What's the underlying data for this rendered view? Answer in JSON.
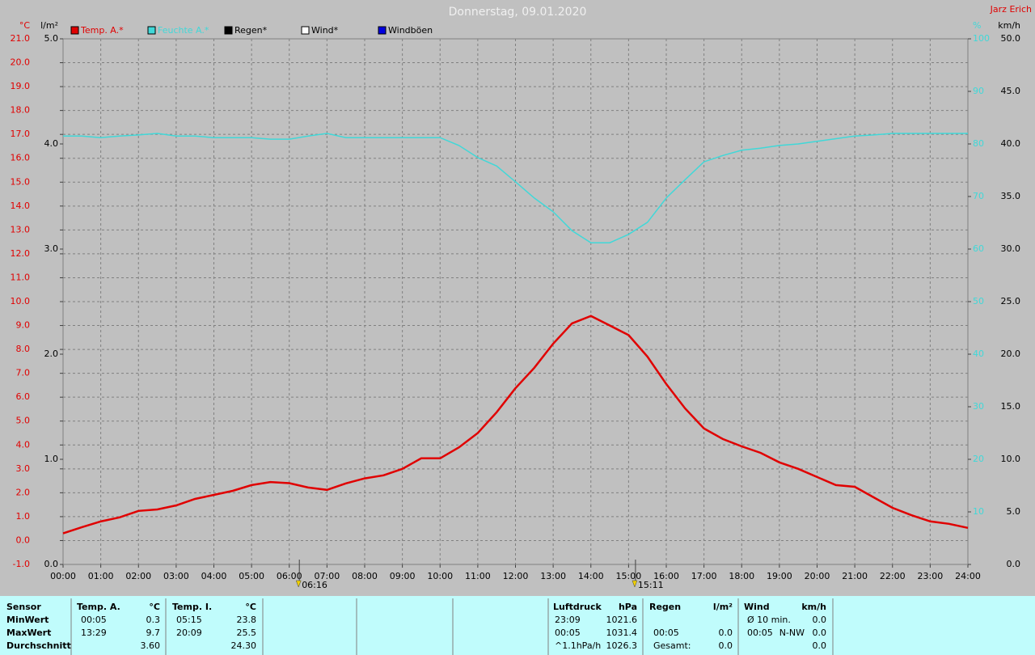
{
  "header": {
    "title": "Donnerstag, 09.01.2020",
    "author": "Jarz Erich"
  },
  "chart_data": {
    "type": "line",
    "x": [
      0,
      0.5,
      1,
      1.5,
      2,
      2.5,
      3,
      3.5,
      4,
      4.5,
      5,
      5.5,
      6,
      6.5,
      7,
      7.5,
      8,
      8.5,
      9,
      9.5,
      10,
      10.5,
      11,
      11.5,
      12,
      12.5,
      13,
      13.5,
      14,
      14.5,
      15,
      15.5,
      16,
      16.5,
      17,
      17.5,
      18,
      18.5,
      19,
      19.5,
      20,
      20.5,
      21,
      21.5,
      22,
      22.5,
      23,
      23.5,
      24
    ],
    "xlim": [
      0,
      24
    ],
    "xticks": [
      {
        "value": 0,
        "label": "00:00"
      },
      {
        "value": 1,
        "label": "01:00"
      },
      {
        "value": 2,
        "label": "02:00"
      },
      {
        "value": 3,
        "label": "03:00"
      },
      {
        "value": 4,
        "label": "04:00"
      },
      {
        "value": 5,
        "label": "05:00"
      },
      {
        "value": 6,
        "label": "06:00"
      },
      {
        "value": 7,
        "label": "07:00"
      },
      {
        "value": 8,
        "label": "08:00"
      },
      {
        "value": 9,
        "label": "09:00"
      },
      {
        "value": 10,
        "label": "10:00"
      },
      {
        "value": 11,
        "label": "11:00"
      },
      {
        "value": 12,
        "label": "12:00"
      },
      {
        "value": 13,
        "label": "13:00"
      },
      {
        "value": 14,
        "label": "14:00"
      },
      {
        "value": 15,
        "label": "15:00"
      },
      {
        "value": 16,
        "label": "16:00"
      },
      {
        "value": 17,
        "label": "17:00"
      },
      {
        "value": 18,
        "label": "18:00"
      },
      {
        "value": 19,
        "label": "19:00"
      },
      {
        "value": 20,
        "label": "20:00"
      },
      {
        "value": 21,
        "label": "21:00"
      },
      {
        "value": 22,
        "label": "22:00"
      },
      {
        "value": 23,
        "label": "23:00"
      },
      {
        "value": 24,
        "label": "24:00"
      }
    ],
    "axes": [
      {
        "unit": "°C",
        "color": "#e00000",
        "lim": [
          -1,
          21
        ],
        "ticks": [
          {
            "value": -1,
            "label": "-1.0"
          },
          {
            "value": 0,
            "label": "0.0"
          },
          {
            "value": 1,
            "label": "1.0"
          },
          {
            "value": 2,
            "label": "2.0"
          },
          {
            "value": 3,
            "label": "3.0"
          },
          {
            "value": 4,
            "label": "4.0"
          },
          {
            "value": 5,
            "label": "5.0"
          },
          {
            "value": 6,
            "label": "6.0"
          },
          {
            "value": 7,
            "label": "7.0"
          },
          {
            "value": 8,
            "label": "8.0"
          },
          {
            "value": 9,
            "label": "9.0"
          },
          {
            "value": 10,
            "label": "10.0"
          },
          {
            "value": 11,
            "label": "11.0"
          },
          {
            "value": 12,
            "label": "12.0"
          },
          {
            "value": 13,
            "label": "13.0"
          },
          {
            "value": 14,
            "label": "14.0"
          },
          {
            "value": 15,
            "label": "15.0"
          },
          {
            "value": 16,
            "label": "16.0"
          },
          {
            "value": 17,
            "label": "17.0"
          },
          {
            "value": 18,
            "label": "18.0"
          },
          {
            "value": 19,
            "label": "19.0"
          },
          {
            "value": 20,
            "label": "20.0"
          },
          {
            "value": 21,
            "label": "21.0"
          }
        ]
      },
      {
        "unit": "l/m²",
        "color": "#000000",
        "lim": [
          0,
          5
        ],
        "ticks": [
          {
            "value": 0,
            "label": "0.0"
          },
          {
            "value": 1,
            "label": "1.0"
          },
          {
            "value": 2,
            "label": "2.0"
          },
          {
            "value": 3,
            "label": "3.0"
          },
          {
            "value": 4,
            "label": "4.0"
          },
          {
            "value": 5,
            "label": "5.0"
          }
        ]
      },
      {
        "unit": "%",
        "color": "#40d8d8",
        "lim": [
          0,
          100
        ],
        "ticks": [
          10,
          20,
          30,
          40,
          50,
          60,
          70,
          80,
          90,
          100
        ]
      },
      {
        "unit": "km/h",
        "color": "#000000",
        "lim": [
          0,
          50
        ],
        "ticks": [
          {
            "value": 0,
            "label": "0.0"
          },
          {
            "value": 5,
            "label": "5.0"
          },
          {
            "value": 10,
            "label": "10.0"
          },
          {
            "value": 15,
            "label": "15.0"
          },
          {
            "value": 20,
            "label": "20.0"
          },
          {
            "value": 25,
            "label": "25.0"
          },
          {
            "value": 30,
            "label": "30.0"
          },
          {
            "value": 35,
            "label": "35.0"
          },
          {
            "value": 40,
            "label": "40.0"
          },
          {
            "value": 45,
            "label": "45.0"
          },
          {
            "value": 50,
            "label": "50.0"
          }
        ]
      }
    ],
    "grid": true,
    "series": [
      {
        "name": "Temp. A.*",
        "color": "#e00000",
        "axis": 0,
        "values": [
          0.3,
          0.56,
          0.8,
          0.97,
          1.24,
          1.3,
          1.47,
          1.74,
          1.91,
          2.08,
          2.32,
          2.45,
          2.4,
          2.22,
          2.12,
          2.39,
          2.6,
          2.73,
          3.0,
          3.44,
          3.44,
          3.9,
          4.5,
          5.37,
          6.38,
          7.23,
          8.24,
          9.09,
          9.4,
          9.0,
          8.6,
          7.7,
          6.55,
          5.53,
          4.69,
          4.25,
          3.94,
          3.67,
          3.27,
          3.0,
          2.66,
          2.32,
          2.25,
          1.81,
          1.37,
          1.06,
          0.8,
          0.7,
          0.53
        ]
      },
      {
        "name": "Feuchte A.*",
        "color": "#40d8d8",
        "axis": 2,
        "values": [
          81.5,
          81.5,
          81.2,
          81.5,
          81.7,
          82,
          81.5,
          81.5,
          81.2,
          81.2,
          81.2,
          80.9,
          80.9,
          81.5,
          82,
          81.2,
          81.2,
          81.2,
          81.2,
          81.2,
          81.2,
          79.7,
          77.4,
          75.8,
          72.8,
          69.7,
          67.1,
          63.5,
          61.2,
          61.2,
          62.8,
          65.1,
          69.7,
          73.2,
          76.6,
          77.8,
          78.8,
          79.2,
          79.7,
          80.0,
          80.5,
          81.0,
          81.5,
          81.7,
          82,
          82,
          82,
          82,
          82
        ]
      },
      {
        "name": "Regen*",
        "color": "#000000",
        "axis": 1
      },
      {
        "name": "Wind*",
        "color": "#ffffff",
        "axis": 3
      },
      {
        "name": "Windböen",
        "color": "#0000e0",
        "axis": 3
      }
    ],
    "annotations": [
      {
        "x": 6.267,
        "label": "06:16"
      },
      {
        "x": 15.183,
        "label": "15:11"
      }
    ]
  },
  "table": {
    "header": [
      "Sensor",
      "Temp. A.",
      "°C",
      "Temp. I.",
      "°C",
      "Luftdruck",
      "hPa",
      "Regen",
      "l/m²",
      "Wind",
      "km/h"
    ],
    "rows": [
      {
        "label": "MinWert",
        "temp_a": [
          "00:05",
          "0.3"
        ],
        "temp_i": [
          "05:15",
          "23.8"
        ],
        "luftdruck": [
          "23:09",
          "1021.6"
        ],
        "wind": [
          "Ø 10 min.",
          "0.0"
        ]
      },
      {
        "label": "MaxWert",
        "temp_a": [
          "13:29",
          "9.7"
        ],
        "temp_i": [
          "20:09",
          "25.5"
        ],
        "luftdruck": [
          "00:05",
          "1031.4"
        ],
        "regen": [
          "00:05",
          "0.0"
        ],
        "wind": [
          "00:05",
          "N-NW",
          "0.0"
        ]
      },
      {
        "label": "Durchschnitt",
        "temp_a": [
          "3.60"
        ],
        "temp_i": [
          "24.30"
        ],
        "luftdruck": [
          "^1.1hPa/h",
          "1026.3"
        ],
        "regen": [
          "Gesamt:",
          "0.0"
        ],
        "wind": [
          "0.0"
        ]
      }
    ]
  }
}
